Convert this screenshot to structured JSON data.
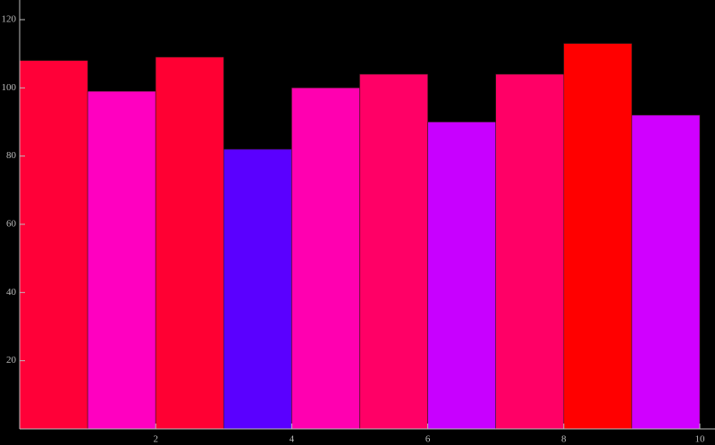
{
  "chart_data": {
    "type": "histogram",
    "bins": [
      0,
      1,
      2,
      3,
      4,
      5,
      6,
      7,
      8,
      9,
      10
    ],
    "values": [
      108,
      99,
      109,
      82,
      100,
      104,
      90,
      104,
      113,
      92
    ],
    "colors": [
      "#ff0038",
      "#ff00c0",
      "#ff0033",
      "#5a00ff",
      "#ff00b0",
      "#ff0066",
      "#c800ff",
      "#ff0066",
      "#ff0000",
      "#d000ff"
    ],
    "xlim": [
      0,
      10
    ],
    "xticks": [
      2,
      4,
      6,
      8,
      10
    ],
    "ylim": [
      0,
      120
    ],
    "yticks": [
      20,
      40,
      60,
      80,
      100,
      120
    ],
    "grid": false
  }
}
